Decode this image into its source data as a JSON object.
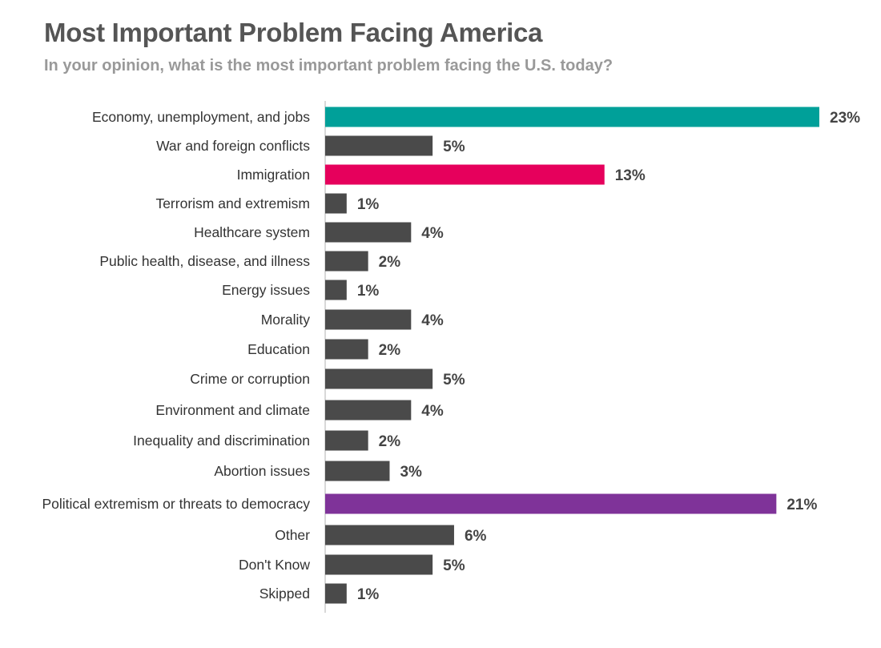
{
  "chart_data": {
    "type": "bar",
    "orientation": "horizontal",
    "title": "Most Important Problem Facing America",
    "subtitle": "In your opinion, what is the most important problem facing the U.S. today?",
    "unit": "%",
    "xlim": [
      0,
      23
    ],
    "grid": false,
    "categories": [
      "Economy, unemployment, and jobs",
      "War and foreign conflicts",
      "Immigration",
      "Terrorism and extremism",
      "Healthcare system",
      "Public health, disease, and illness",
      "Energy issues",
      "Morality",
      "Education",
      "Crime or corruption",
      "Environment and climate",
      "Inequality and discrimination",
      "Abortion issues",
      "Political extremism or threats to democracy",
      "Other",
      "Don't Know",
      "Skipped"
    ],
    "values": [
      23,
      5,
      13,
      1,
      4,
      2,
      1,
      4,
      2,
      5,
      4,
      2,
      3,
      21,
      6,
      5,
      1
    ],
    "value_labels": [
      "23%",
      "5%",
      "13%",
      "1%",
      "4%",
      "2%",
      "1%",
      "4%",
      "2%",
      "5%",
      "4%",
      "2%",
      "3%",
      "21%",
      "6%",
      "5%",
      "1%"
    ],
    "colors": {
      "default": "#4a4a4a",
      "default_label": "#444444",
      "highlights": {
        "Economy, unemployment, and jobs": "#00a099",
        "Immigration": "#e6005c",
        "Political extremism or threats to democracy": "#7f3399"
      }
    }
  }
}
